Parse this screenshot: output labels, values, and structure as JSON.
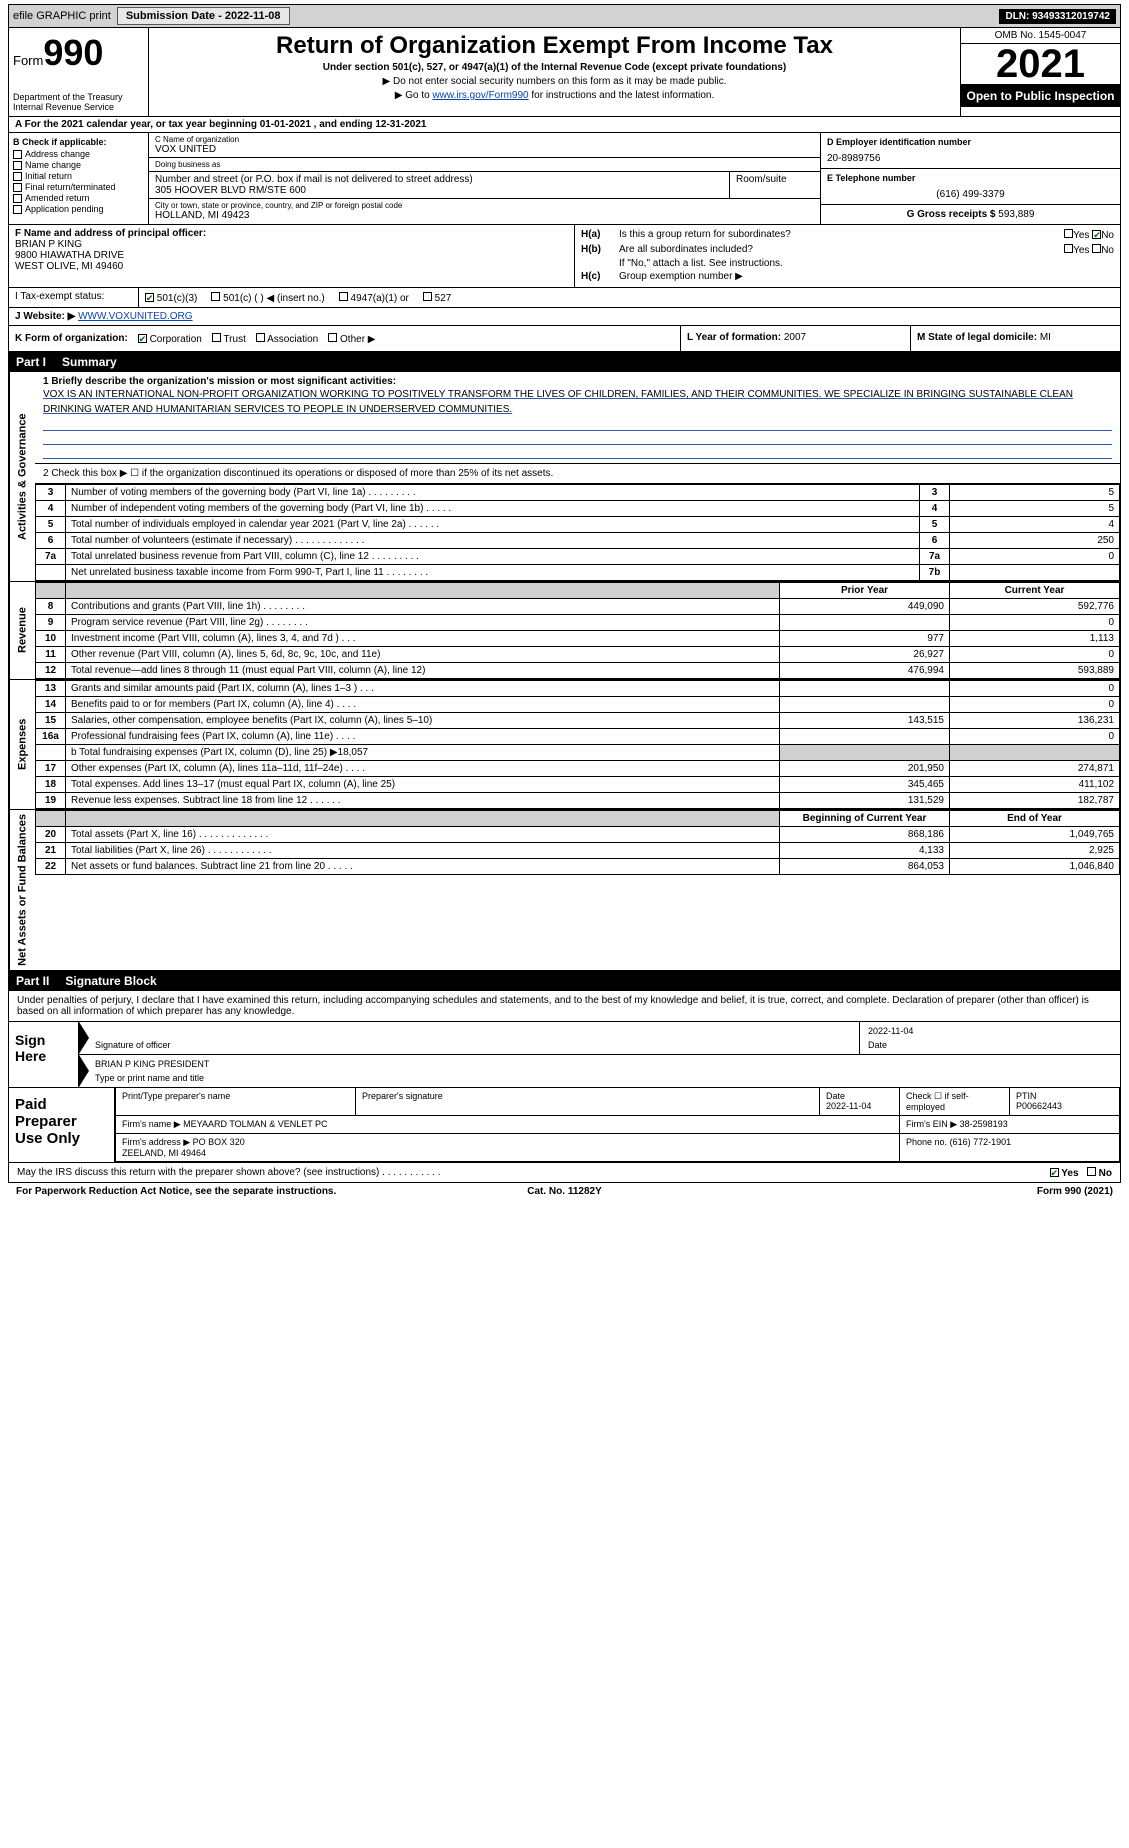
{
  "topbar": {
    "efile": "efile GRAPHIC print",
    "submission_label": "Submission Date - 2022-11-08",
    "dln": "DLN: 93493312019742"
  },
  "header": {
    "form_prefix": "Form",
    "form_number": "990",
    "title": "Return of Organization Exempt From Income Tax",
    "subtitle": "Under section 501(c), 527, or 4947(a)(1) of the Internal Revenue Code (except private foundations)",
    "note1": "▶ Do not enter social security numbers on this form as it may be made public.",
    "note2_pre": "▶ Go to ",
    "note2_link": "www.irs.gov/Form990",
    "note2_post": " for instructions and the latest information.",
    "dept": "Department of the Treasury\nInternal Revenue Service",
    "omb": "OMB No. 1545-0047",
    "year": "2021",
    "open": "Open to Public Inspection"
  },
  "row_a": "A For the 2021 calendar year, or tax year beginning 01-01-2021     , and ending 12-31-2021",
  "section_b": {
    "header": "B Check if applicable:",
    "opts": [
      "Address change",
      "Name change",
      "Initial return",
      "Final return/terminated",
      "Amended return",
      "Application pending"
    ]
  },
  "section_c": {
    "name_lbl": "C Name of organization",
    "name": "VOX UNITED",
    "dba_lbl": "Doing business as",
    "dba": "",
    "addr_lbl": "Number and street (or P.O. box if mail is not delivered to street address)",
    "addr": "305 HOOVER BLVD RM/STE 600",
    "room_lbl": "Room/suite",
    "city_lbl": "City or town, state or province, country, and ZIP or foreign postal code",
    "city": "HOLLAND, MI  49423"
  },
  "section_d": {
    "lbl": "D Employer identification number",
    "val": "20-8989756"
  },
  "section_e": {
    "lbl": "E Telephone number",
    "val": "(616) 499-3379"
  },
  "section_g": {
    "lbl": "G Gross receipts $",
    "val": "593,889"
  },
  "section_f": {
    "lbl": "F Name and address of principal officer:",
    "name": "BRIAN P KING",
    "addr1": "9800 HIAWATHA DRIVE",
    "addr2": "WEST OLIVE, MI  49460"
  },
  "section_h": {
    "ha_label": "H(a)",
    "ha_q": "Is this a group return for subordinates?",
    "ha_ans": "No",
    "hb_label": "H(b)",
    "hb_q": "Are all subordinates included?",
    "hb_note": "If \"No,\" attach a list. See instructions.",
    "hc_label": "H(c)",
    "hc_q": "Group exemption number ▶"
  },
  "row_i": {
    "lbl": "I  Tax-exempt status:",
    "o1": "501(c)(3)",
    "o2": "501(c) (   ) ◀ (insert no.)",
    "o3": "4947(a)(1) or",
    "o4": "527"
  },
  "row_j": {
    "lbl": "J   Website: ▶",
    "val": "WWW.VOXUNITED.ORG"
  },
  "row_k": {
    "lbl": "K Form of organization:",
    "o1": "Corporation",
    "o2": "Trust",
    "o3": "Association",
    "o4": "Other ▶"
  },
  "row_l": {
    "lbl": "L Year of formation:",
    "val": "2007"
  },
  "row_m": {
    "lbl": "M State of legal domicile:",
    "val": "MI"
  },
  "parts": {
    "p1_num": "Part I",
    "p1_title": "Summary",
    "p2_num": "Part II",
    "p2_title": "Signature Block"
  },
  "side_tabs": {
    "ag": "Activities & Governance",
    "rev": "Revenue",
    "exp": "Expenses",
    "net": "Net Assets or Fund Balances"
  },
  "summary": {
    "line1_lbl": "1  Briefly describe the organization's mission or most significant activities:",
    "line1_text": "VOX IS AN INTERNATIONAL NON-PROFIT ORGANIZATION WORKING TO POSITIVELY TRANSFORM THE LIVES OF CHILDREN, FAMILIES, AND THEIR COMMUNITIES. WE SPECIALIZE IN BRINGING SUSTAINABLE CLEAN DRINKING WATER AND HUMANITARIAN SERVICES TO PEOPLE IN UNDERSERVED COMMUNITIES.",
    "line2": "2   Check this box ▶ ☐  if the organization discontinued its operations or disposed of more than 25% of its net assets.",
    "rows_simple": [
      {
        "n": "3",
        "t": "Number of voting members of the governing body (Part VI, line 1a)   .    .    .    .    .    .    .    .    .",
        "box": "3",
        "v": "5"
      },
      {
        "n": "4",
        "t": "Number of independent voting members of the governing body (Part VI, line 1b)   .    .    .    .    .",
        "box": "4",
        "v": "5"
      },
      {
        "n": "5",
        "t": "Total number of individuals employed in calendar year 2021 (Part V, line 2a)   .    .    .    .    .    .",
        "box": "5",
        "v": "4"
      },
      {
        "n": "6",
        "t": "Total number of volunteers (estimate if necessary)    .    .    .    .    .    .    .    .    .    .    .    .    .",
        "box": "6",
        "v": "250"
      },
      {
        "n": "7a",
        "t": "Total unrelated business revenue from Part VIII, column (C), line 12   .    .    .    .    .    .    .    .    .",
        "box": "7a",
        "v": "0"
      },
      {
        "n": "",
        "t": "Net unrelated business taxable income from Form 990-T, Part I, line 11   .    .    .    .    .    .    .    .",
        "box": "7b",
        "v": ""
      }
    ],
    "col_hdr_prior": "Prior Year",
    "col_hdr_curr": "Current Year",
    "revenue": [
      {
        "n": "8",
        "t": "Contributions and grants (Part VIII, line 1h)    .    .    .    .    .    .    .    .",
        "p": "449,090",
        "c": "592,776"
      },
      {
        "n": "9",
        "t": "Program service revenue (Part VIII, line 2g)    .    .    .    .    .    .    .    .",
        "p": "",
        "c": "0"
      },
      {
        "n": "10",
        "t": "Investment income (Part VIII, column (A), lines 3, 4, and 7d )    .    .    .",
        "p": "977",
        "c": "1,113"
      },
      {
        "n": "11",
        "t": "Other revenue (Part VIII, column (A), lines 5, 6d, 8c, 9c, 10c, and 11e)",
        "p": "26,927",
        "c": "0"
      },
      {
        "n": "12",
        "t": "Total revenue—add lines 8 through 11 (must equal Part VIII, column (A), line 12)",
        "p": "476,994",
        "c": "593,889"
      }
    ],
    "expenses": [
      {
        "n": "13",
        "t": "Grants and similar amounts paid (Part IX, column (A), lines 1–3 )   .    .    .",
        "p": "",
        "c": "0"
      },
      {
        "n": "14",
        "t": "Benefits paid to or for members (Part IX, column (A), line 4)   .    .    .    .",
        "p": "",
        "c": "0"
      },
      {
        "n": "15",
        "t": "Salaries, other compensation, employee benefits (Part IX, column (A), lines 5–10)",
        "p": "143,515",
        "c": "136,231"
      },
      {
        "n": "16a",
        "t": "Professional fundraising fees (Part IX, column (A), line 11e)   .    .    .    .",
        "p": "",
        "c": "0"
      }
    ],
    "line16b": "b  Total fundraising expenses (Part IX, column (D), line 25) ▶18,057",
    "expenses2": [
      {
        "n": "17",
        "t": "Other expenses (Part IX, column (A), lines 11a–11d, 11f–24e)   .    .    .    .",
        "p": "201,950",
        "c": "274,871"
      },
      {
        "n": "18",
        "t": "Total expenses. Add lines 13–17 (must equal Part IX, column (A), line 25)",
        "p": "345,465",
        "c": "411,102"
      },
      {
        "n": "19",
        "t": "Revenue less expenses. Subtract line 18 from line 12   .    .    .    .    .    .",
        "p": "131,529",
        "c": "182,787"
      }
    ],
    "col_hdr_begin": "Beginning of Current Year",
    "col_hdr_end": "End of Year",
    "netassets": [
      {
        "n": "20",
        "t": "Total assets (Part X, line 16)   .    .    .    .    .    .    .    .    .    .    .    .    .",
        "p": "868,186",
        "c": "1,049,765"
      },
      {
        "n": "21",
        "t": "Total liabilities (Part X, line 26)   .    .    .    .    .    .    .    .    .    .    .    .",
        "p": "4,133",
        "c": "2,925"
      },
      {
        "n": "22",
        "t": "Net assets or fund balances. Subtract line 21 from line 20   .    .    .    .    .",
        "p": "864,053",
        "c": "1,046,840"
      }
    ]
  },
  "sig": {
    "intro": "Under penalties of perjury, I declare that I have examined this return, including accompanying schedules and statements, and to the best of my knowledge and belief, it is true, correct, and complete. Declaration of preparer (other than officer) is based on all information of which preparer has any knowledge.",
    "sign_here": "Sign Here",
    "sig_officer_lbl": "Signature of officer",
    "sig_date": "2022-11-04",
    "date_lbl": "Date",
    "name_title": "BRIAN P KING PRESIDENT",
    "name_title_lbl": "Type or print name and title"
  },
  "prep": {
    "title": "Paid Preparer Use Only",
    "h_name": "Print/Type preparer's name",
    "h_sig": "Preparer's signature",
    "h_date": "Date",
    "date": "2022-11-04",
    "h_self": "Check ☐ if self-employed",
    "h_ptin": "PTIN",
    "ptin": "P00662443",
    "firm_name_lbl": "Firm's name     ▶",
    "firm_name": "MEYAARD TOLMAN & VENLET PC",
    "firm_ein_lbl": "Firm's EIN ▶",
    "firm_ein": "38-2598193",
    "firm_addr_lbl": "Firm's address ▶",
    "firm_addr": "PO BOX 320\nZEELAND, MI  49464",
    "phone_lbl": "Phone no.",
    "phone": "(616) 772-1901"
  },
  "footer": {
    "q": "May the IRS discuss this return with the preparer shown above? (see instructions)    .    .    .    .    .    .    .    .    .    .    .",
    "yes": "Yes",
    "no": "No"
  },
  "bottom": {
    "l": "For Paperwork Reduction Act Notice, see the separate instructions.",
    "c": "Cat. No. 11282Y",
    "r": "Form 990 (2021)"
  }
}
